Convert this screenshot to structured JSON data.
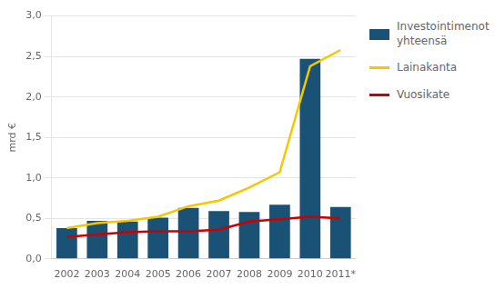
{
  "chart_data": {
    "type": "bar",
    "categories": [
      "2002",
      "2003",
      "2004",
      "2005",
      "2006",
      "2007",
      "2008",
      "2009",
      "2010",
      "2011*"
    ],
    "series": [
      {
        "name": "Investointimenot\nyhteensä",
        "type": "bar",
        "color": "#1a5276",
        "values": [
          0.38,
          0.47,
          0.46,
          0.51,
          0.63,
          0.59,
          0.58,
          0.67,
          2.47,
          0.64
        ]
      },
      {
        "name": "Lainakanta",
        "type": "line",
        "color": "#F5C700",
        "values": [
          0.38,
          0.44,
          0.47,
          0.52,
          0.65,
          0.72,
          0.88,
          1.07,
          2.38,
          2.58
        ]
      },
      {
        "name": "Vuosikate",
        "type": "line",
        "color": "#CC0000",
        "values": [
          0.27,
          0.3,
          0.33,
          0.34,
          0.34,
          0.36,
          0.46,
          0.49,
          0.52,
          0.5
        ]
      }
    ],
    "ylabel": "mrd €",
    "ylim": [
      0,
      3.0
    ],
    "yticks": [
      {
        "value": 0.0,
        "label": "0,0"
      },
      {
        "value": 0.5,
        "label": "0,5"
      },
      {
        "value": 1.0,
        "label": "1,0"
      },
      {
        "value": 1.5,
        "label": "1,5"
      },
      {
        "value": 2.0,
        "label": "2,0"
      },
      {
        "value": 2.5,
        "label": "2,5"
      },
      {
        "value": 3.0,
        "label": "3,0"
      }
    ],
    "grid": true,
    "legend": "right"
  }
}
